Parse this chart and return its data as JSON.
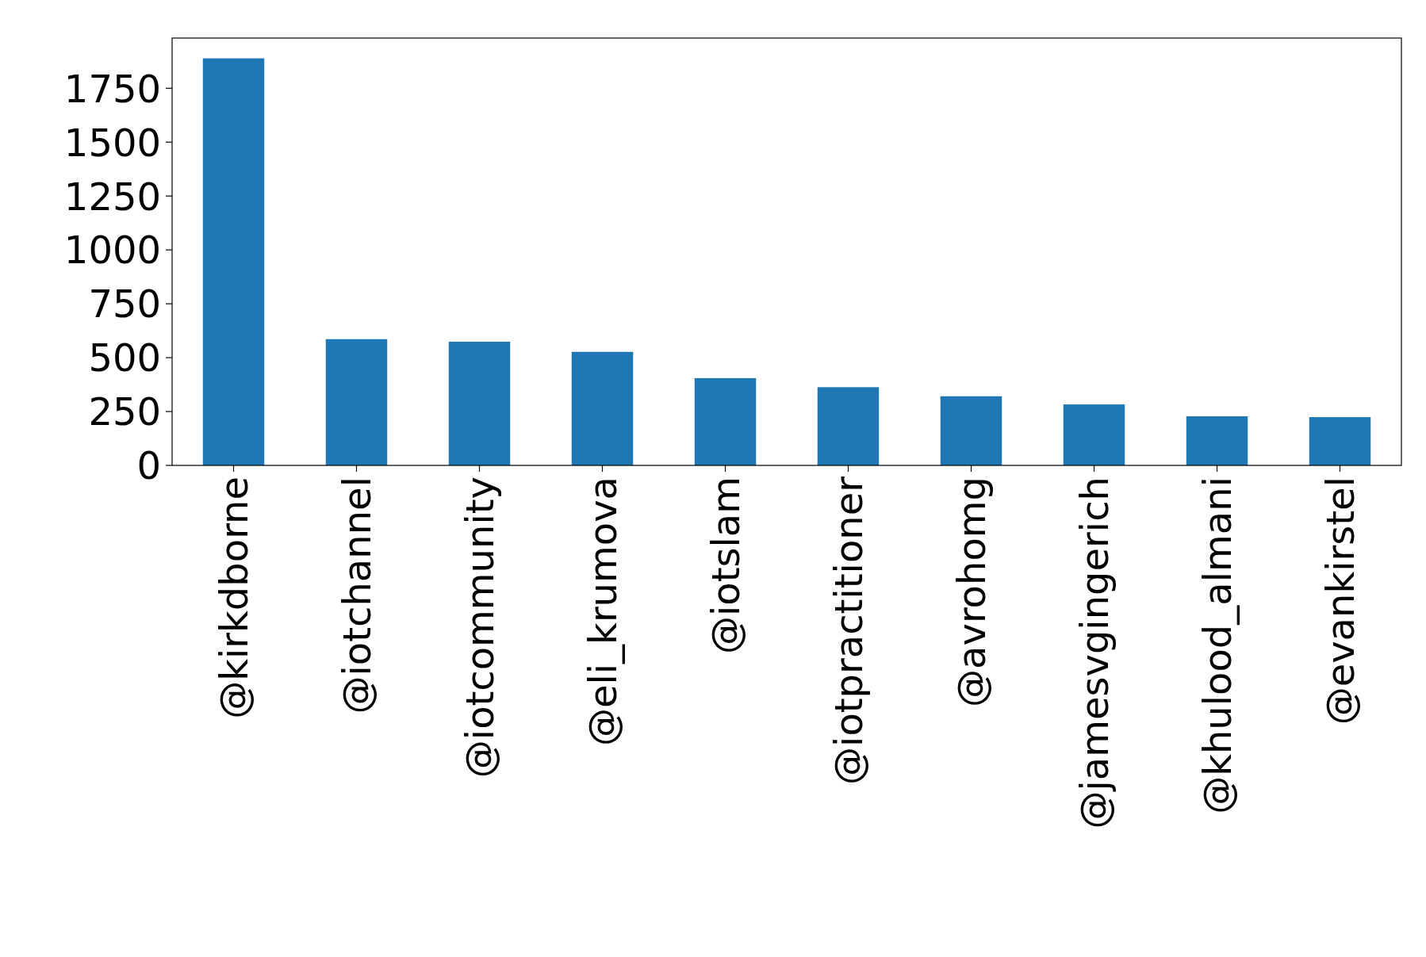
{
  "chart_data": {
    "type": "bar",
    "categories": [
      "@kirkdborne",
      "@iotchannel",
      "@iotcommunity",
      "@eli_krumova",
      "@iotslam",
      "@iotpractitioner",
      "@avrohomg",
      "@jamesvgingerich",
      "@khulood_almani",
      "@evankirstel"
    ],
    "values": [
      1889,
      586,
      574,
      527,
      405,
      363,
      321,
      283,
      228,
      224
    ],
    "color": "#1f77b4",
    "ylim": [
      0,
      1983
    ],
    "yticks": [
      0,
      250,
      500,
      750,
      1000,
      1250,
      1500,
      1750
    ],
    "grid": false
  }
}
